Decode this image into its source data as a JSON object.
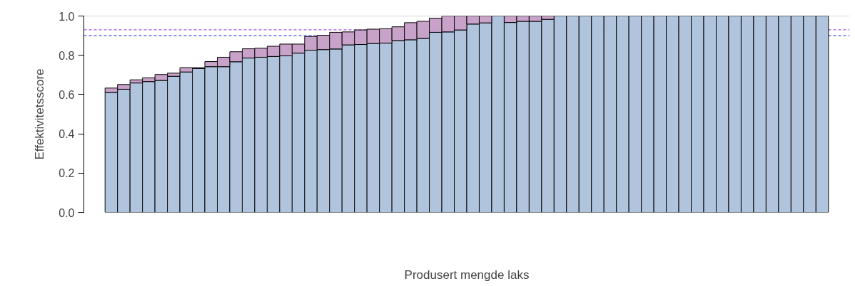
{
  "chart_data": {
    "type": "bar",
    "stacked": true,
    "xlabel": "Produsert mengde laks",
    "ylabel": "Effektivitetsscore",
    "categories": [
      null,
      null,
      null,
      null,
      null,
      null,
      null,
      null,
      null,
      null,
      null,
      null,
      null,
      null,
      null,
      null,
      null,
      null,
      null,
      null,
      null,
      null,
      null,
      null,
      null,
      null,
      null,
      null,
      null,
      null,
      null,
      null,
      null,
      null,
      null,
      null,
      null,
      null,
      null,
      null,
      null,
      null,
      null,
      null,
      null,
      null,
      null,
      null,
      null,
      null,
      null,
      null,
      null,
      null,
      null,
      null,
      null,
      null
    ],
    "series": [
      {
        "color": "#b0c4de",
        "values": [
          0.611,
          0.627,
          0.659,
          0.666,
          0.672,
          0.693,
          0.715,
          0.732,
          0.742,
          0.742,
          0.767,
          0.786,
          0.79,
          0.794,
          0.797,
          0.811,
          0.826,
          0.829,
          0.832,
          0.853,
          0.855,
          0.86,
          0.862,
          0.875,
          0.879,
          0.886,
          0.917,
          0.919,
          0.929,
          0.959,
          0.965,
          1.0,
          0.967,
          0.973,
          0.973,
          0.983,
          1.0,
          1.0,
          1.0,
          1.0,
          1.0,
          1.0,
          1.0,
          1.0,
          1.0,
          1.0,
          1.0,
          1.0,
          1.0,
          1.0,
          1.0,
          1.0,
          1.0,
          1.0,
          1.0,
          1.0,
          1.0,
          1.0
        ]
      },
      {
        "color": "#c8a2c8",
        "values": [
          0.022,
          0.024,
          0.016,
          0.019,
          0.03,
          0.016,
          0.022,
          0.005,
          0.026,
          0.048,
          0.051,
          0.047,
          0.046,
          0.052,
          0.06,
          0.046,
          0.07,
          0.073,
          0.085,
          0.066,
          0.074,
          0.073,
          0.073,
          0.07,
          0.087,
          0.087,
          0.072,
          0.081,
          0.071,
          0.041,
          0.035,
          0,
          0.033,
          0.027,
          0.027,
          0.017,
          0,
          0,
          0,
          0,
          0,
          0,
          0,
          0,
          0,
          0,
          0,
          0,
          0,
          0,
          0,
          0,
          0,
          0,
          0,
          0,
          0,
          0
        ]
      }
    ],
    "ylim": [
      0,
      1
    ],
    "yticks": [
      {
        "value": 0,
        "label": "0.0"
      },
      0.2,
      0.4,
      0.6,
      0.8,
      {
        "value": 1.0,
        "label": "1.0"
      }
    ],
    "tick_labels": "y",
    "grid": false,
    "ref_lines": [
      {
        "axis": "y",
        "value": 1.0,
        "color": "#aaaaaa",
        "line_style": "solid"
      },
      {
        "axis": "y",
        "value": 0.93,
        "color": "#a05ae6",
        "line_style": "dashed"
      },
      {
        "axis": "y",
        "value": 0.9,
        "color": "#4a4ae6",
        "line_style": "dashed"
      }
    ]
  }
}
